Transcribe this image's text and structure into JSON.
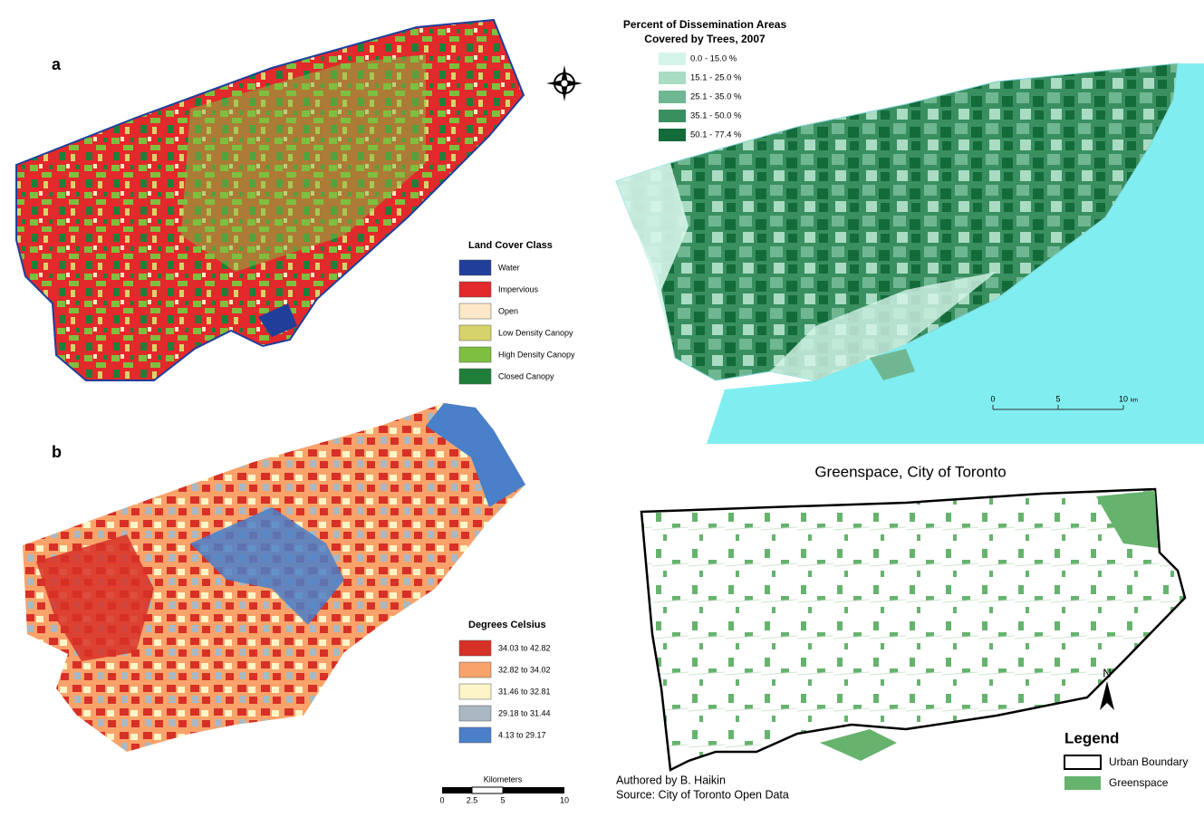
{
  "panel_a": {
    "label": "a",
    "legend": {
      "title": "Land Cover Class",
      "items": [
        {
          "label": "Water",
          "color": "#1f3f9a"
        },
        {
          "label": "Impervious",
          "color": "#e2292b"
        },
        {
          "label": "Open",
          "color": "#fbe8c8"
        },
        {
          "label": "Low Density Canopy",
          "color": "#d7d36b"
        },
        {
          "label": "High Density Canopy",
          "color": "#7fbf3f"
        },
        {
          "label": "Closed Canopy",
          "color": "#1f7f3a"
        }
      ]
    }
  },
  "panel_b": {
    "label": "b",
    "legend": {
      "title": "Degrees Celsius",
      "items": [
        {
          "label": "34.03 to 42.82",
          "color": "#d73027"
        },
        {
          "label": "32.82 to 34.02",
          "color": "#f9a36b"
        },
        {
          "label": "31.46 to 32.81",
          "color": "#fdf5c7"
        },
        {
          "label": "29.18 to 31.44",
          "color": "#a9b8c2"
        },
        {
          "label": "4.13 to 29.17",
          "color": "#4a7fc9"
        }
      ]
    },
    "scale": {
      "title": "Kilometers",
      "ticks": [
        "0",
        "2.5",
        "5",
        "10"
      ]
    }
  },
  "panel_c": {
    "legend": {
      "title": [
        "Percent of Dissemination Areas",
        "Covered by Trees, 2007"
      ],
      "items": [
        {
          "label": "0.0 - 15.0 %",
          "color": "#d6f5ea"
        },
        {
          "label": "15.1 - 25.0 %",
          "color": "#a9dcc2"
        },
        {
          "label": "25.1 - 35.0 %",
          "color": "#6fb792"
        },
        {
          "label": "35.1 - 50.0 %",
          "color": "#3a8f60"
        },
        {
          "label": "50.1 - 77.4 %",
          "color": "#146b3a"
        }
      ]
    },
    "scale": {
      "ticks": [
        "0",
        "5",
        "10"
      ],
      "unit": "km"
    }
  },
  "panel_d": {
    "title": "Greenspace, City of Toronto",
    "north": "N",
    "legend": {
      "title": "Legend",
      "items": [
        {
          "label": "Urban Boundary",
          "color": "#ffffff"
        },
        {
          "label": "Greenspace",
          "color": "#66b36e"
        }
      ]
    },
    "credits": [
      "Authored by B. Haikin",
      "Source: City of Toronto Open Data"
    ]
  }
}
